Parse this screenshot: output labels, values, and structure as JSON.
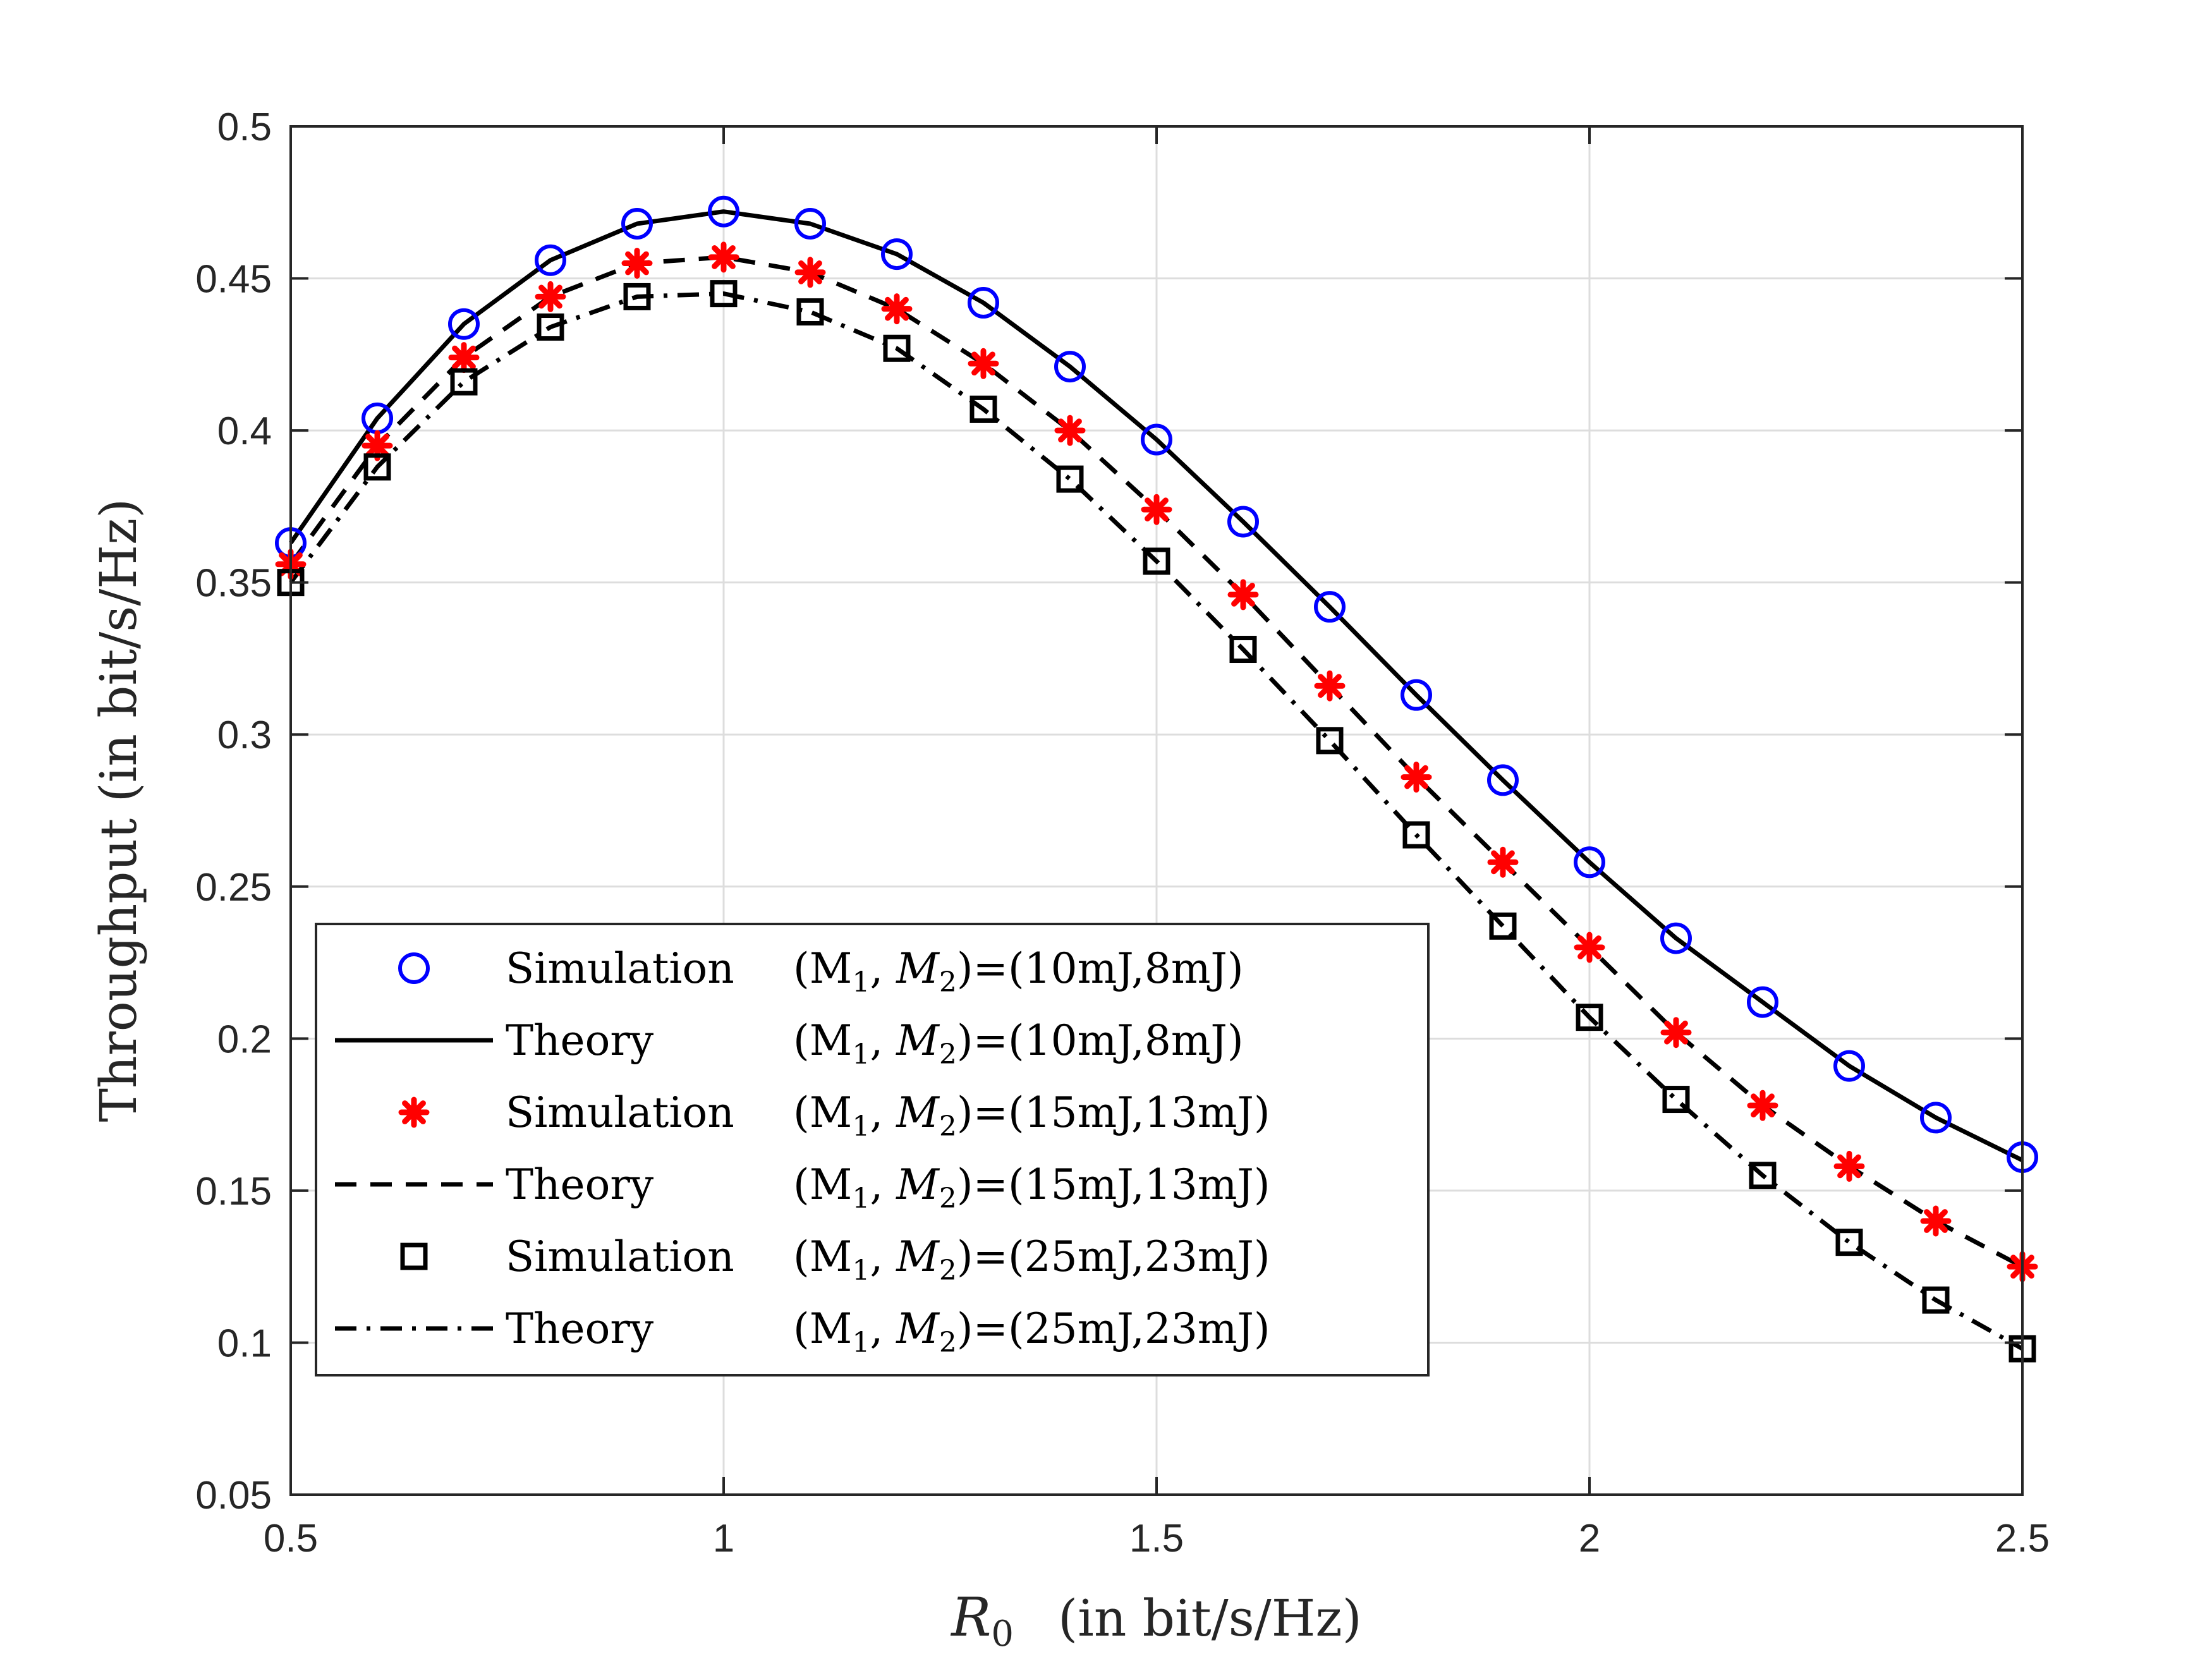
{
  "chart_data": {
    "type": "line",
    "xlabel": {
      "symbol": "R",
      "subscript": "0",
      "unit": "(in bit/s/Hz)"
    },
    "ylabel": "Throughput (in bit/s/Hz)",
    "xlim": [
      0.5,
      2.5
    ],
    "ylim": [
      0.05,
      0.5
    ],
    "xticks": [
      0.5,
      1,
      1.5,
      2,
      2.5
    ],
    "xtick_labels": [
      "0.5",
      "1",
      "1.5",
      "2",
      "2.5"
    ],
    "yticks": [
      0.05,
      0.1,
      0.15,
      0.2,
      0.25,
      0.3,
      0.35,
      0.4,
      0.45,
      0.5
    ],
    "ytick_labels": [
      "0.05",
      "0.1",
      "0.15",
      "0.2",
      "0.25",
      "0.3",
      "0.35",
      "0.4",
      "0.45",
      "0.5"
    ],
    "grid": true,
    "legend_position": "bottom-left",
    "x": [
      0.5,
      0.6,
      0.7,
      0.8,
      0.9,
      1.0,
      1.1,
      1.2,
      1.3,
      1.4,
      1.5,
      1.6,
      1.7,
      1.8,
      1.9,
      2.0,
      2.1,
      2.2,
      2.3,
      2.4,
      2.5
    ],
    "series": [
      {
        "name": "Simulation (M1,M2)=(10mJ,8mJ)",
        "kind": "markers",
        "marker": "circle",
        "color": "#0000ff",
        "values": [
          0.363,
          0.404,
          0.435,
          0.456,
          0.468,
          0.472,
          0.468,
          0.458,
          0.442,
          0.421,
          0.397,
          0.37,
          0.342,
          0.313,
          0.285,
          0.258,
          0.233,
          0.212,
          0.191,
          0.174,
          0.161
        ]
      },
      {
        "name": "Theory (M1,M2)=(10mJ,8mJ)",
        "kind": "line",
        "dash": "solid",
        "color": "#000000",
        "values": [
          0.363,
          0.404,
          0.435,
          0.456,
          0.468,
          0.472,
          0.468,
          0.458,
          0.442,
          0.421,
          0.397,
          0.37,
          0.342,
          0.313,
          0.285,
          0.258,
          0.233,
          0.212,
          0.191,
          0.174,
          0.16
        ]
      },
      {
        "name": "Simulation (M1,M2)=(15mJ,13mJ)",
        "kind": "markers",
        "marker": "asterisk",
        "color": "#ff0000",
        "values": [
          0.356,
          0.395,
          0.424,
          0.444,
          0.455,
          0.457,
          0.452,
          0.44,
          0.422,
          0.4,
          0.374,
          0.346,
          0.316,
          0.286,
          0.258,
          0.23,
          0.202,
          0.178,
          0.158,
          0.14,
          0.125
        ]
      },
      {
        "name": "Theory (M1,M2)=(15mJ,13mJ)",
        "kind": "line",
        "dash": "dashed",
        "color": "#000000",
        "values": [
          0.356,
          0.395,
          0.424,
          0.444,
          0.455,
          0.457,
          0.452,
          0.44,
          0.422,
          0.4,
          0.374,
          0.346,
          0.316,
          0.286,
          0.258,
          0.23,
          0.202,
          0.178,
          0.158,
          0.14,
          0.125
        ]
      },
      {
        "name": "Simulation (M1,M2)=(25mJ,23mJ)",
        "kind": "markers",
        "marker": "square",
        "color": "#000000",
        "values": [
          0.35,
          0.388,
          0.416,
          0.434,
          0.444,
          0.445,
          0.439,
          0.427,
          0.407,
          0.384,
          0.357,
          0.328,
          0.298,
          0.267,
          0.237,
          0.207,
          0.18,
          0.155,
          0.133,
          0.114,
          0.098
        ]
      },
      {
        "name": "Theory (M1,M2)=(25mJ,23mJ)",
        "kind": "line",
        "dash": "dashdot",
        "color": "#000000",
        "values": [
          0.35,
          0.388,
          0.416,
          0.434,
          0.444,
          0.445,
          0.439,
          0.427,
          0.407,
          0.384,
          0.357,
          0.328,
          0.298,
          0.267,
          0.237,
          0.207,
          0.18,
          0.155,
          0.133,
          0.114,
          0.098
        ]
      }
    ],
    "legend": [
      {
        "label": "Simulation",
        "params": "(M",
        "energies": ")=(10mJ,8mJ)",
        "marker": "circle",
        "color": "#0000ff"
      },
      {
        "label": "Theory",
        "params": "(M",
        "energies": ")=(10mJ,8mJ)",
        "line": "solid",
        "color": "#000000"
      },
      {
        "label": "Simulation",
        "params": "(M",
        "energies": ")=(15mJ,13mJ)",
        "marker": "asterisk",
        "color": "#ff0000"
      },
      {
        "label": "Theory",
        "params": "(M",
        "energies": ")=(15mJ,13mJ)",
        "line": "dashed",
        "color": "#000000"
      },
      {
        "label": "Simulation",
        "params": "(M",
        "energies": ")=(25mJ,23mJ)",
        "marker": "square",
        "color": "#000000"
      },
      {
        "label": "Theory",
        "params": "(M",
        "energies": ")=(25mJ,23mJ)",
        "line": "dashdot",
        "color": "#000000"
      }
    ]
  }
}
